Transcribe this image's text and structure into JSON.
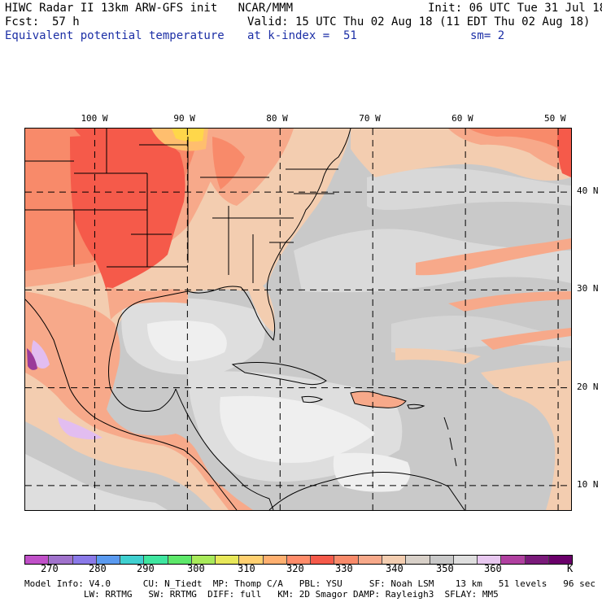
{
  "header": {
    "line1_left": "HIWC Radar II 13km ARW-GFS init   NCAR/MMM",
    "line1_right": "Init: 06 UTC Tue 31 Jul 18",
    "fcst_label": "Fcst:",
    "fcst_value": "57 h",
    "valid": "Valid: 15 UTC Thu 02 Aug 18 (11 EDT Thu 02 Aug 18)",
    "field": "Equivalent potential temperature",
    "level": "at k-index =  51",
    "smoothing": "sm= 2"
  },
  "map": {
    "lon_labels": [
      "100 W",
      "90 W",
      "80 W",
      "70 W",
      "60 W",
      "50 W"
    ],
    "lon_values": [
      -100,
      -90,
      -80,
      -70,
      -60,
      -50
    ],
    "lat_labels": [
      "40 N",
      "30 N",
      "20 N",
      "10 N"
    ],
    "lat_values": [
      40,
      30,
      20,
      10
    ],
    "lon_range": [
      -107.5,
      -48.6
    ],
    "lat_range": [
      7.5,
      46.5
    ],
    "colors": {
      "background_gray": "#c9c9c9",
      "light_gray": "#dedede",
      "pale_white": "#efefef",
      "tan": "#f3cdb0",
      "salmon": "#f7a98a",
      "orange_red": "#f88a6a",
      "red": "#f55a4a",
      "light_orange": "#ffbe6e",
      "yellow": "#ffd74a",
      "lavender": "#e2bdf0",
      "purple": "#9a3a9a",
      "border": "#000000"
    }
  },
  "colorbar": {
    "colors": [
      "#c050c8",
      "#a072cc",
      "#8a79e8",
      "#5a9af0",
      "#3fd0d0",
      "#3fe6a0",
      "#5de86a",
      "#a8ea5a",
      "#e8e85a",
      "#ffd070",
      "#ffb070",
      "#ff8c6a",
      "#f55a4a",
      "#f88a6a",
      "#f7a98a",
      "#f3cdb0",
      "#d8d0c8",
      "#c8c8c8",
      "#dedede",
      "#e8c8f0",
      "#b040a0",
      "#7a1a7a",
      "#6a006a"
    ],
    "labels": [
      "270",
      "280",
      "290",
      "300",
      "310",
      "320",
      "330",
      "340",
      "350",
      "360",
      "K"
    ]
  },
  "footer": {
    "line1": "Model Info: V4.0      CU: N_Tiedt  MP: Thomp C/A   PBL: YSU     SF: Noah LSM    13 km   51 levels   96 sec",
    "line2": "           LW: RRTMG   SW: RRTMG  DIFF: full   KM: 2D Smagor DAMP: Rayleigh3  SFLAY: MM5"
  }
}
